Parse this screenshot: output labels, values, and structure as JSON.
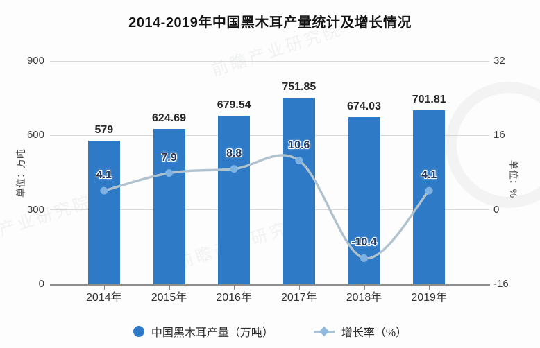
{
  "title": "2014-2019年中国黑木耳产量统计及增长情况",
  "chart_data": {
    "type": "bar",
    "categories": [
      "2014年",
      "2015年",
      "2016年",
      "2017年",
      "2018年",
      "2019年"
    ],
    "series": [
      {
        "name": "中国黑木耳产量（万吨）",
        "type": "bar",
        "axis": "left",
        "values": [
          579,
          624.69,
          679.54,
          751.85,
          674.03,
          701.81
        ]
      },
      {
        "name": "增长率（%）",
        "type": "line",
        "axis": "right",
        "values": [
          4.1,
          7.9,
          8.8,
          10.6,
          -10.4,
          4.1
        ]
      }
    ],
    "left_axis": {
      "label": "单位：万吨",
      "min": 0,
      "max": 900,
      "ticks": [
        900,
        600,
        300,
        0
      ]
    },
    "right_axis": {
      "label": "单位：%",
      "min": -16,
      "max": 32,
      "ticks": [
        32,
        16,
        0,
        -16
      ]
    },
    "legend": [
      {
        "marker": "circle",
        "label": "中国黑木耳产量（万吨）"
      },
      {
        "marker": "diamond",
        "label": "增长率（%）"
      }
    ],
    "grid": true,
    "legend_position": "bottom",
    "colors": {
      "bar": "#2e7ac6",
      "line": "#b0c2ce",
      "marker": "#7db2e2",
      "bar_label": "#262626",
      "line_label": "#1f3864"
    }
  },
  "watermark": {
    "text": "前瞻产业研究院"
  }
}
